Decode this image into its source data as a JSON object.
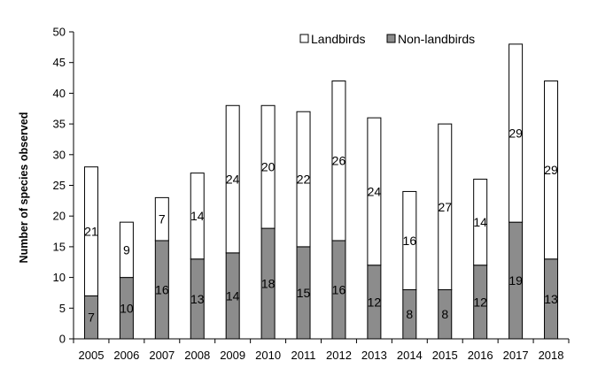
{
  "chart_data": {
    "type": "bar",
    "stacked": true,
    "title": "",
    "xlabel": "",
    "ylabel": "Number of species observed",
    "ylim": [
      0,
      50
    ],
    "y_ticks": [
      0,
      5,
      10,
      15,
      20,
      25,
      30,
      35,
      40,
      45,
      50
    ],
    "grid": false,
    "legend_position": "top-right",
    "categories": [
      "2005",
      "2006",
      "2007",
      "2008",
      "2009",
      "2010",
      "2011",
      "2012",
      "2013",
      "2014",
      "2015",
      "2016",
      "2017",
      "2018"
    ],
    "series": [
      {
        "name": "Non-landbirds",
        "color": "#8c8c8c",
        "values": [
          7,
          10,
          16,
          13,
          14,
          18,
          15,
          16,
          12,
          8,
          8,
          12,
          19,
          13
        ]
      },
      {
        "name": "Landbirds",
        "color": "#ffffff",
        "values": [
          21,
          9,
          7,
          14,
          24,
          20,
          22,
          26,
          24,
          16,
          27,
          14,
          29,
          29
        ]
      }
    ]
  }
}
